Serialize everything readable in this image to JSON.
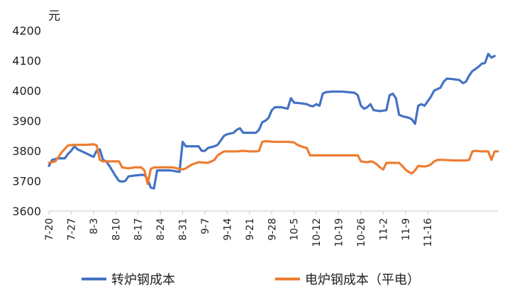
{
  "chart_data": {
    "type": "line",
    "ylabel": "元",
    "ylim": [
      3600,
      4200
    ],
    "y_ticks": [
      3600,
      3700,
      3800,
      3900,
      4000,
      4100,
      4200
    ],
    "grid": false,
    "legend_position": "bottom",
    "x_tick_labels": [
      "7-20",
      "7-27",
      "8-3",
      "8-10",
      "8-17",
      "8-24",
      "8-31",
      "9-7",
      "9-14",
      "9-21",
      "9-28",
      "10-5",
      "10-12",
      "10-19",
      "10-26",
      "11-2",
      "11-9",
      "11-16"
    ],
    "x_start": "7-20",
    "series": [
      {
        "name": "转炉钢成本",
        "color": "#4472C4",
        "points": [
          [
            0,
            3750
          ],
          [
            1,
            3770
          ],
          [
            3,
            3775
          ],
          [
            5,
            3775
          ],
          [
            6,
            3790
          ],
          [
            7,
            3800
          ],
          [
            8,
            3815
          ],
          [
            9,
            3805
          ],
          [
            11,
            3795
          ],
          [
            13,
            3785
          ],
          [
            14,
            3780
          ],
          [
            15,
            3800
          ],
          [
            16,
            3805
          ],
          [
            17,
            3770
          ],
          [
            18,
            3765
          ],
          [
            19,
            3750
          ],
          [
            21,
            3715
          ],
          [
            22,
            3700
          ],
          [
            23,
            3698
          ],
          [
            24,
            3700
          ],
          [
            25,
            3715
          ],
          [
            27,
            3718
          ],
          [
            29,
            3720
          ],
          [
            30,
            3720
          ],
          [
            31,
            3705
          ],
          [
            32,
            3678
          ],
          [
            33,
            3675
          ],
          [
            34,
            3735
          ],
          [
            36,
            3735
          ],
          [
            38,
            3735
          ],
          [
            40,
            3732
          ],
          [
            41,
            3730
          ],
          [
            42,
            3830
          ],
          [
            43,
            3815
          ],
          [
            45,
            3815
          ],
          [
            47,
            3815
          ],
          [
            48,
            3800
          ],
          [
            49,
            3800
          ],
          [
            50,
            3810
          ],
          [
            52,
            3815
          ],
          [
            53,
            3820
          ],
          [
            55,
            3850
          ],
          [
            56,
            3855
          ],
          [
            58,
            3860
          ],
          [
            59,
            3870
          ],
          [
            60,
            3875
          ],
          [
            61,
            3860
          ],
          [
            63,
            3860
          ],
          [
            65,
            3860
          ],
          [
            66,
            3870
          ],
          [
            67,
            3895
          ],
          [
            68,
            3900
          ],
          [
            69,
            3910
          ],
          [
            70,
            3935
          ],
          [
            71,
            3945
          ],
          [
            73,
            3945
          ],
          [
            75,
            3940
          ],
          [
            76,
            3975
          ],
          [
            77,
            3960
          ],
          [
            79,
            3958
          ],
          [
            81,
            3955
          ],
          [
            82,
            3950
          ],
          [
            83,
            3948
          ],
          [
            84,
            3955
          ],
          [
            85,
            3950
          ],
          [
            86,
            3990
          ],
          [
            87,
            3995
          ],
          [
            89,
            3997
          ],
          [
            92,
            3997
          ],
          [
            94,
            3995
          ],
          [
            96,
            3993
          ],
          [
            97,
            3985
          ],
          [
            98,
            3950
          ],
          [
            99,
            3940
          ],
          [
            100,
            3945
          ],
          [
            101,
            3955
          ],
          [
            102,
            3935
          ],
          [
            104,
            3932
          ],
          [
            106,
            3935
          ],
          [
            107,
            3985
          ],
          [
            108,
            3990
          ],
          [
            109,
            3975
          ],
          [
            110,
            3920
          ],
          [
            111,
            3915
          ],
          [
            113,
            3910
          ],
          [
            114,
            3905
          ],
          [
            115,
            3890
          ],
          [
            116,
            3950
          ],
          [
            117,
            3955
          ],
          [
            118,
            3950
          ],
          [
            119,
            3965
          ],
          [
            120,
            3980
          ],
          [
            121,
            4000
          ],
          [
            122,
            4005
          ],
          [
            123,
            4010
          ],
          [
            124,
            4030
          ],
          [
            125,
            4040
          ],
          [
            127,
            4038
          ],
          [
            129,
            4035
          ],
          [
            130,
            4025
          ],
          [
            131,
            4030
          ],
          [
            132,
            4050
          ],
          [
            133,
            4065
          ],
          [
            134,
            4072
          ],
          [
            135,
            4080
          ],
          [
            136,
            4090
          ],
          [
            137,
            4092
          ],
          [
            138,
            4122
          ],
          [
            139,
            4110
          ],
          [
            140,
            4115
          ]
        ]
      },
      {
        "name": "电炉钢成本（平电）",
        "color": "#ED7D31",
        "points": [
          [
            0,
            3760
          ],
          [
            2,
            3765
          ],
          [
            4,
            3795
          ],
          [
            6,
            3818
          ],
          [
            8,
            3820
          ],
          [
            10,
            3820
          ],
          [
            12,
            3820
          ],
          [
            14,
            3822
          ],
          [
            15,
            3818
          ],
          [
            16,
            3770
          ],
          [
            17,
            3765
          ],
          [
            20,
            3765
          ],
          [
            22,
            3765
          ],
          [
            23,
            3745
          ],
          [
            25,
            3742
          ],
          [
            27,
            3745
          ],
          [
            29,
            3745
          ],
          [
            30,
            3735
          ],
          [
            31,
            3690
          ],
          [
            32,
            3740
          ],
          [
            33,
            3745
          ],
          [
            35,
            3745
          ],
          [
            37,
            3745
          ],
          [
            39,
            3745
          ],
          [
            41,
            3740
          ],
          [
            42,
            3738
          ],
          [
            43,
            3742
          ],
          [
            45,
            3755
          ],
          [
            47,
            3762
          ],
          [
            50,
            3760
          ],
          [
            52,
            3770
          ],
          [
            53,
            3785
          ],
          [
            55,
            3798
          ],
          [
            57,
            3798
          ],
          [
            59,
            3798
          ],
          [
            61,
            3800
          ],
          [
            63,
            3798
          ],
          [
            65,
            3798
          ],
          [
            66,
            3800
          ],
          [
            67,
            3830
          ],
          [
            68,
            3832
          ],
          [
            71,
            3830
          ],
          [
            73,
            3830
          ],
          [
            75,
            3830
          ],
          [
            77,
            3828
          ],
          [
            78,
            3820
          ],
          [
            80,
            3812
          ],
          [
            81,
            3810
          ],
          [
            82,
            3785
          ],
          [
            83,
            3785
          ],
          [
            85,
            3785
          ],
          [
            87,
            3785
          ],
          [
            89,
            3785
          ],
          [
            91,
            3785
          ],
          [
            93,
            3785
          ],
          [
            95,
            3785
          ],
          [
            97,
            3785
          ],
          [
            98,
            3765
          ],
          [
            100,
            3762
          ],
          [
            101,
            3765
          ],
          [
            102,
            3762
          ],
          [
            103,
            3755
          ],
          [
            104,
            3745
          ],
          [
            105,
            3738
          ],
          [
            106,
            3760
          ],
          [
            107,
            3760
          ],
          [
            109,
            3760
          ],
          [
            110,
            3760
          ],
          [
            111,
            3750
          ],
          [
            112,
            3738
          ],
          [
            113,
            3730
          ],
          [
            114,
            3725
          ],
          [
            115,
            3735
          ],
          [
            116,
            3750
          ],
          [
            118,
            3748
          ],
          [
            119,
            3750
          ],
          [
            120,
            3755
          ],
          [
            121,
            3765
          ],
          [
            122,
            3770
          ],
          [
            124,
            3770
          ],
          [
            127,
            3768
          ],
          [
            129,
            3768
          ],
          [
            131,
            3768
          ],
          [
            132,
            3770
          ],
          [
            133,
            3798
          ],
          [
            134,
            3800
          ],
          [
            136,
            3798
          ],
          [
            138,
            3798
          ],
          [
            139,
            3770
          ],
          [
            140,
            3798
          ],
          [
            141,
            3798
          ]
        ]
      }
    ]
  }
}
